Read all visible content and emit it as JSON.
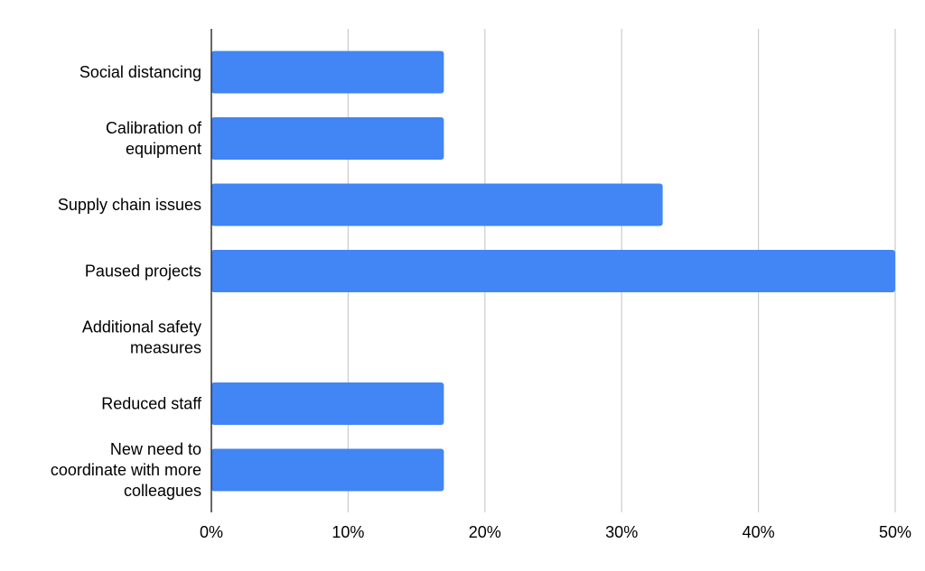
{
  "chart_data": {
    "type": "bar",
    "orientation": "horizontal",
    "categories": [
      "Social distancing",
      "Calibration of equipment",
      "Supply chain issues",
      "Paused projects",
      "Additional safety measures",
      "Reduced staff",
      "New need to coordinate with more colleagues"
    ],
    "category_lines": [
      [
        "Social distancing"
      ],
      [
        "Calibration of",
        "equipment"
      ],
      [
        "Supply chain issues"
      ],
      [
        "Paused projects"
      ],
      [
        "Additional safety",
        "measures"
      ],
      [
        "Reduced staff"
      ],
      [
        "New need to",
        "coordinate with more",
        "colleagues"
      ]
    ],
    "values": [
      17,
      17,
      33,
      50,
      0,
      17,
      17
    ],
    "xlim": [
      0,
      50
    ],
    "ticks": [
      0,
      10,
      20,
      30,
      40,
      50
    ],
    "tick_labels": [
      "0%",
      "10%",
      "20%",
      "30%",
      "40%",
      "50%"
    ],
    "grid": true,
    "title": "",
    "xlabel": "",
    "ylabel": "",
    "legend": "none",
    "colors": {
      "bar": "#4285f4",
      "grid": "#cccccc",
      "axis": "#333333"
    }
  }
}
